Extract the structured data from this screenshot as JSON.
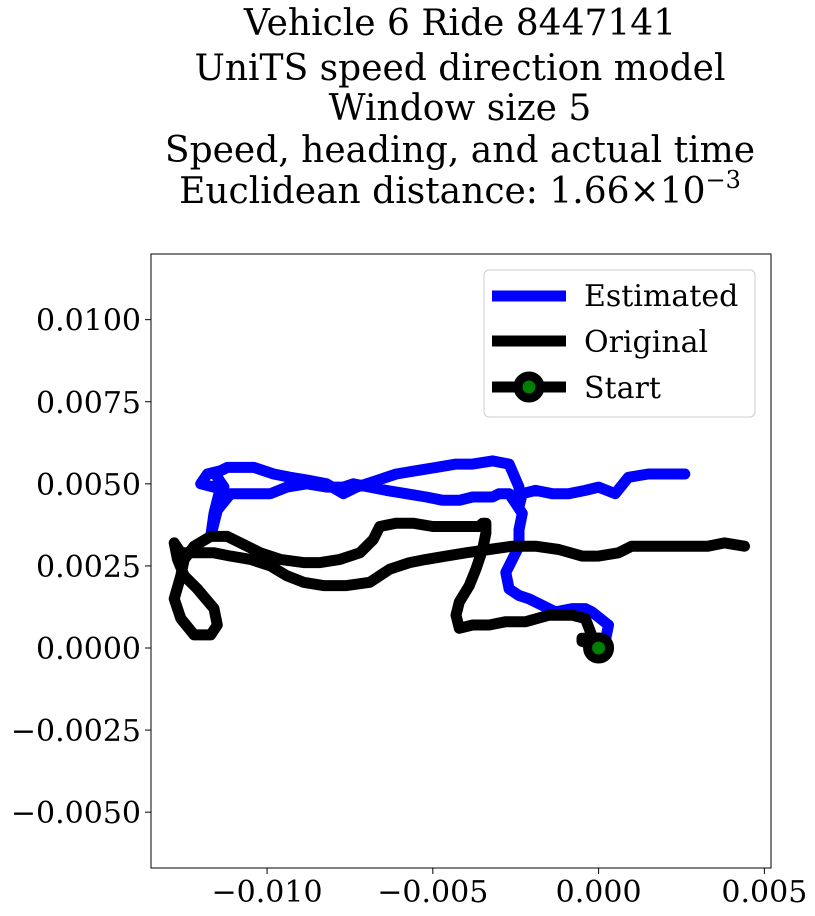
{
  "chart_data": {
    "type": "line",
    "title_lines": [
      "Vehicle 6 Ride 8447141",
      "UniTS speed direction model",
      "Window size 5",
      "Speed, heading, and actual time"
    ],
    "title_distance": {
      "prefix": "Euclidean distance: ",
      "mantissa": "1.66",
      "times": "×",
      "base": "10",
      "exponent": "−3"
    },
    "xlabel": "",
    "ylabel": "",
    "xlim": [
      -0.0135,
      0.0052
    ],
    "ylim": [
      -0.0067,
      0.012
    ],
    "xticks": [
      -0.01,
      -0.005,
      0.0,
      0.005
    ],
    "xtick_labels": [
      "−0.010",
      "−0.005",
      "0.000",
      "0.005"
    ],
    "yticks": [
      0.01,
      0.0075,
      0.005,
      0.0025,
      0.0,
      -0.0025,
      -0.005
    ],
    "ytick_labels": [
      "0.0100",
      "0.0075",
      "0.0050",
      "0.0025",
      "0.0000",
      "−0.0025",
      "−0.0050"
    ],
    "grid": false,
    "legend_position": "upper right",
    "legend": [
      "Estimated",
      "Original",
      "Start"
    ],
    "series": [
      {
        "name": "Estimated",
        "color": "#0000ff",
        "x": [
          0.0,
          0.0002,
          0.0003,
          -0.0002,
          -0.0004,
          -0.0008,
          -0.0013,
          -0.0017,
          -0.0021,
          -0.0024,
          -0.0027,
          -0.0028,
          -0.0026,
          -0.0024,
          -0.0024,
          -0.0023,
          -0.0025,
          -0.0027,
          -0.003,
          -0.0032,
          -0.0035,
          -0.0038,
          -0.0042,
          -0.0047,
          -0.0052,
          -0.0058,
          -0.0064,
          -0.0069,
          -0.0074,
          -0.0077,
          -0.0082,
          -0.0088,
          -0.0094,
          -0.0099,
          -0.0105,
          -0.0111,
          -0.0115,
          -0.0117,
          -0.0116,
          -0.0114,
          -0.0115,
          -0.0113,
          -0.0116,
          -0.012,
          -0.0118,
          -0.0114,
          -0.0112,
          -0.0111,
          -0.0108,
          -0.0104,
          -0.0098,
          -0.0093,
          -0.0087,
          -0.0082,
          -0.0077,
          -0.0073,
          -0.0067,
          -0.0061,
          -0.0055,
          -0.0049,
          -0.0043,
          -0.0038,
          -0.0032,
          -0.0027,
          -0.0024,
          -0.0024,
          -0.0023,
          -0.0019,
          -0.0014,
          -0.0009,
          -0.0004,
          0.0,
          0.0005,
          0.0009,
          0.0015,
          0.002,
          0.0026
        ],
        "y": [
          0.0,
          0.0002,
          0.0007,
          0.0011,
          0.0012,
          0.0012,
          0.0011,
          0.0013,
          0.0015,
          0.0016,
          0.0018,
          0.0023,
          0.0027,
          0.0031,
          0.0036,
          0.0041,
          0.0044,
          0.0047,
          0.0047,
          0.0046,
          0.0046,
          0.0046,
          0.0045,
          0.0045,
          0.0046,
          0.0047,
          0.0048,
          0.0049,
          0.005,
          0.0049,
          0.0049,
          0.005,
          0.0049,
          0.0047,
          0.0047,
          0.0047,
          0.0042,
          0.0034,
          0.0041,
          0.0049,
          0.0052,
          0.0049,
          0.0049,
          0.005,
          0.0053,
          0.0054,
          0.0055,
          0.0055,
          0.0055,
          0.0055,
          0.0053,
          0.0052,
          0.0051,
          0.005,
          0.0047,
          0.0049,
          0.0051,
          0.0053,
          0.0054,
          0.0055,
          0.0056,
          0.0056,
          0.0057,
          0.0056,
          0.0049,
          0.0043,
          0.0047,
          0.0048,
          0.0047,
          0.0047,
          0.0048,
          0.0049,
          0.0047,
          0.0052,
          0.0053,
          0.0053,
          0.0053
        ]
      },
      {
        "name": "Original",
        "color": "#000000",
        "x": [
          0.0,
          -0.0001,
          -0.0005,
          -0.0005,
          -0.0001,
          -0.0004,
          -0.0008,
          -0.0015,
          -0.0022,
          -0.0028,
          -0.0033,
          -0.0038,
          -0.0042,
          -0.0043,
          -0.0042,
          -0.0039,
          -0.0037,
          -0.0035,
          -0.0034,
          -0.0034,
          -0.0035,
          -0.0036,
          -0.0038,
          -0.0041,
          -0.0045,
          -0.005,
          -0.0056,
          -0.0061,
          -0.0066,
          -0.0068,
          -0.0072,
          -0.0078,
          -0.0084,
          -0.0089,
          -0.0096,
          -0.0102,
          -0.0108,
          -0.0112,
          -0.0117,
          -0.0122,
          -0.0125,
          -0.0126,
          -0.0128,
          -0.0126,
          -0.0122,
          -0.0117,
          -0.0115,
          -0.0116,
          -0.0121,
          -0.0125,
          -0.0127,
          -0.0128,
          -0.0126,
          -0.0121,
          -0.0116,
          -0.0111,
          -0.0105,
          -0.0099,
          -0.0094,
          -0.0089,
          -0.0083,
          -0.0076,
          -0.0069,
          -0.0063,
          -0.0057,
          -0.0052,
          -0.0046,
          -0.004,
          -0.0033,
          -0.0026,
          -0.0019,
          -0.0012,
          -0.0005,
          0.0,
          0.0006,
          0.001,
          0.0015,
          0.0021,
          0.0027,
          0.0033,
          0.0038,
          0.0044
        ],
        "y": [
          0.0,
          0.0003,
          0.0003,
          0.0002,
          0.0001,
          0.0009,
          0.001,
          0.001,
          0.0008,
          0.0008,
          0.0007,
          0.0007,
          0.0006,
          0.001,
          0.0014,
          0.0019,
          0.0024,
          0.003,
          0.0035,
          0.0038,
          0.0038,
          0.0037,
          0.0037,
          0.0037,
          0.0037,
          0.0037,
          0.0038,
          0.0038,
          0.0037,
          0.0033,
          0.0029,
          0.0027,
          0.0026,
          0.0026,
          0.0027,
          0.0029,
          0.0032,
          0.0034,
          0.0034,
          0.0031,
          0.0027,
          0.0022,
          0.0015,
          0.0009,
          0.0004,
          0.0004,
          0.0007,
          0.0012,
          0.0018,
          0.0022,
          0.0027,
          0.0032,
          0.0029,
          0.0029,
          0.0029,
          0.0028,
          0.0027,
          0.0025,
          0.0022,
          0.002,
          0.0019,
          0.0019,
          0.002,
          0.0024,
          0.0026,
          0.0027,
          0.0028,
          0.0029,
          0.003,
          0.0031,
          0.0031,
          0.003,
          0.0028,
          0.0028,
          0.0029,
          0.0031,
          0.0031,
          0.0031,
          0.0031,
          0.0031,
          0.0032,
          0.0031
        ]
      }
    ],
    "start_point": {
      "name": "Start",
      "x": 0.0,
      "y": 0.0,
      "marker_color": "#008000",
      "edge_color": "#000000"
    }
  }
}
